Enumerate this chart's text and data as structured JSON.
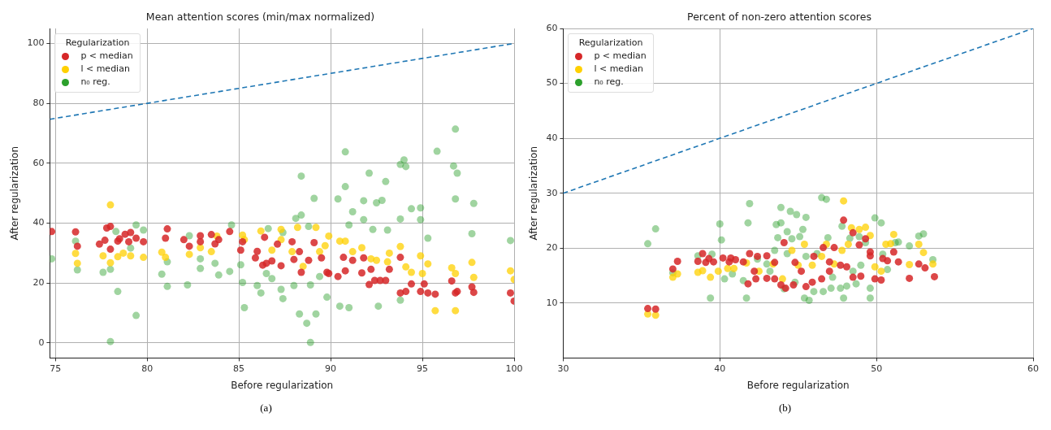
{
  "chart_data": [
    {
      "type": "scatter",
      "title": "Mean attention scores (min/max normalized)",
      "xlabel": "Before regularization",
      "ylabel": "After regularization",
      "legend_title": "Regularization",
      "legend": "top left",
      "grid": true,
      "marker": "circle",
      "xlim": [
        74.7,
        100
      ],
      "ylim": [
        -5,
        105
      ],
      "xticks": [
        75,
        80,
        85,
        90,
        95,
        100
      ],
      "yticks": [
        0,
        20,
        40,
        60,
        80,
        100
      ],
      "annotations": [
        "(a)"
      ],
      "series": [
        {
          "type": "line",
          "color": "#1f77b4",
          "line_style": "dashed",
          "marker": "none",
          "x": [
            74.7,
            100
          ],
          "values": [
            74.7,
            100
          ]
        },
        {
          "name": "p < median",
          "color": "#d62728",
          "x": [
            74.8,
            76.1,
            76.2,
            77.4,
            77.7,
            77.8,
            78,
            78,
            78.4,
            78.5,
            78.8,
            79.1,
            79,
            79.4,
            79.8,
            81.1,
            81,
            82,
            82.3,
            82.9,
            82.9,
            83.5,
            83.7,
            83.9,
            84.5,
            85.1,
            85.2,
            85.9,
            86,
            86.4,
            86.3,
            86.5,
            86.8,
            87.1,
            87.3,
            87.9,
            88,
            88.4,
            88.3,
            88.8,
            89.1,
            89.5,
            89.8,
            89.9,
            90.4,
            90.7,
            90.8,
            91.2,
            91.8,
            91.7,
            92.1,
            92.2,
            92.4,
            92.7,
            93,
            93.2,
            93.8,
            93.8,
            94.1,
            94.4,
            94.9,
            95.1,
            95.3,
            95.7,
            96.6,
            96.8,
            96.9,
            97.7,
            97.8,
            99.8,
            100
          ],
          "values": [
            37.2,
            37.1,
            32.3,
            33,
            34.3,
            38.4,
            38.9,
            31.3,
            34,
            34.8,
            36.3,
            36.9,
            33.8,
            35,
            33.8,
            38.1,
            35,
            34.5,
            32.3,
            35.8,
            33.8,
            36.2,
            33.1,
            34.5,
            37.2,
            31,
            33.8,
            28.4,
            30.6,
            35.3,
            26,
            26.6,
            27.4,
            33,
            25.8,
            33.8,
            27.9,
            23.6,
            30.5,
            27.6,
            33.5,
            28.4,
            23.6,
            23.2,
            22.2,
            28.6,
            24.1,
            27.6,
            28.4,
            23.4,
            19.5,
            24.6,
            20.9,
            20.9,
            20.9,
            24.6,
            28.6,
            16.7,
            17.2,
            19.7,
            17.2,
            19.7,
            16.7,
            16.3,
            20.7,
            16.7,
            17.2,
            18.7,
            16.9,
            16.7,
            14
          ]
        },
        {
          "name": "l < median",
          "color": "#ffd000",
          "x": [
            78,
            76.1,
            76.2,
            77.6,
            78,
            78.4,
            78.7,
            79.1,
            79.8,
            81,
            80.8,
            82.3,
            82.9,
            83.5,
            83.8,
            85.2,
            85.3,
            86.2,
            86.8,
            87.3,
            87.3,
            87.9,
            88.2,
            88.5,
            89.2,
            89.4,
            89.9,
            89.7,
            90.5,
            90.8,
            91.2,
            91.7,
            92.2,
            92.5,
            93.1,
            93.2,
            93.8,
            94.1,
            94.4,
            94.9,
            95,
            95.3,
            95.7,
            96.6,
            96.8,
            96.8,
            97.7,
            97.8,
            99.8,
            100
          ],
          "values": [
            46.1,
            29.9,
            26.6,
            29.1,
            26.8,
            28.8,
            30,
            29.1,
            28.6,
            28.6,
            30.3,
            29.6,
            31.8,
            30.5,
            35.7,
            36,
            34.5,
            37.4,
            31,
            37.9,
            34.5,
            30.5,
            38.6,
            25.6,
            38.6,
            30.5,
            35.7,
            32.5,
            34,
            34,
            30.5,
            31.8,
            28.1,
            27.6,
            27.1,
            30,
            32.2,
            25.4,
            23.6,
            29.1,
            23.2,
            26.4,
            10.8,
            25.1,
            23.2,
            10.8,
            26.9,
            21.9,
            24.1,
            21.2
          ]
        },
        {
          "name": "n₀ reg.",
          "color": "#2ca02c",
          "x": [
            74.8,
            76.1,
            76.2,
            77.6,
            78,
            78,
            78.3,
            78.4,
            79.4,
            79.4,
            79.1,
            79.8,
            80.8,
            81.1,
            81.1,
            82.2,
            82.3,
            82.9,
            82.9,
            83.7,
            83.9,
            84.5,
            84.6,
            85.1,
            85.2,
            85.3,
            86,
            86.2,
            86.5,
            86.6,
            86.8,
            87.3,
            87.4,
            87.4,
            88,
            88.1,
            88.3,
            88.4,
            88.4,
            88.7,
            88.8,
            88.9,
            88.9,
            89.1,
            89.2,
            89.4,
            89.8,
            90.4,
            90.5,
            90.8,
            90.8,
            91,
            91,
            91.2,
            91.8,
            91.8,
            92.1,
            92.3,
            92.5,
            92.6,
            92.8,
            93,
            93.1,
            93.8,
            93.8,
            94,
            94.1,
            93.8,
            94.4,
            94.9,
            94.9,
            95.3,
            95.8,
            96.7,
            96.8,
            96.9,
            96.8,
            97.8,
            97.7,
            99.8
          ],
          "values": [
            28.1,
            34,
            24.4,
            23.6,
            0.5,
            24.6,
            37.2,
            17.2,
            39.4,
            9.2,
            31.7,
            37.7,
            23,
            18.9,
            27.1,
            19.4,
            35.8,
            24.9,
            28.1,
            26.6,
            22.7,
            23.9,
            39.4,
            26.1,
            20.2,
            11.8,
            19.2,
            16.7,
            23.2,
            38.2,
            21.5,
            17.9,
            14.8,
            36.9,
            19.2,
            41.6,
            9.7,
            42.7,
            55.7,
            6.6,
            38.9,
            19.4,
            0.2,
            48.3,
            9.7,
            22.2,
            15.3,
            48.1,
            12.3,
            52.2,
            63.8,
            39.4,
            11.8,
            43.8,
            47.5,
            41.2,
            56.7,
            37.9,
            46.8,
            12.3,
            47.6,
            53.9,
            37.7,
            59.6,
            41.4,
            61.1,
            58.9,
            14.3,
            44.8,
            45.1,
            41.2,
            35,
            64,
            59.1,
            71.4,
            56.7,
            48.1,
            46.6,
            36.5,
            34.2
          ]
        }
      ]
    },
    {
      "type": "scatter",
      "title": "Percent of non-zero attention scores",
      "xlabel": "Before regularization",
      "ylabel": "After regularization",
      "legend_title": "Regularization",
      "legend": "top left",
      "grid": true,
      "marker": "circle",
      "xlim": [
        30,
        60
      ],
      "ylim": [
        0,
        60
      ],
      "xticks": [
        30,
        40,
        50,
        60
      ],
      "yticks": [
        10,
        20,
        30,
        40,
        50,
        60
      ],
      "annotations": [
        "(b)"
      ],
      "series": [
        {
          "type": "line",
          "color": "#1f77b4",
          "line_style": "dashed",
          "marker": "none",
          "x": [
            30,
            60
          ],
          "values": [
            30,
            60
          ]
        },
        {
          "name": "p < median",
          "color": "#d62728",
          "x": [
            35.4,
            35.9,
            37,
            37.3,
            38.6,
            38.9,
            39.1,
            39.3,
            39.6,
            40.2,
            40.6,
            40.7,
            41,
            41.5,
            41.8,
            41.9,
            42.2,
            42.4,
            42.3,
            43,
            43,
            43.5,
            43.5,
            43.9,
            44.2,
            44.1,
            44.7,
            44.8,
            45.2,
            45.5,
            45.9,
            46,
            46.5,
            46.6,
            47,
            47,
            47.3,
            47.7,
            47.9,
            48.1,
            48.5,
            48.5,
            48.9,
            49,
            49.3,
            49.6,
            49.6,
            49.9,
            50.3,
            50.4,
            50.7,
            51.1,
            51.4,
            52.1,
            52.7,
            53.1,
            53.7
          ],
          "values": [
            9,
            8.9,
            16.2,
            17.6,
            17.6,
            19,
            17.4,
            18.1,
            17.5,
            18.2,
            17.5,
            18.2,
            17.9,
            17.5,
            13.5,
            19,
            15.8,
            18.5,
            14.4,
            18.6,
            14.5,
            14.4,
            17.4,
            13.3,
            12.7,
            21,
            13.3,
            17.4,
            15.8,
            13,
            13.8,
            18.5,
            14.4,
            20.1,
            15.8,
            17.5,
            20.1,
            16.9,
            25.1,
            16.6,
            22.8,
            14.7,
            20.6,
            14.9,
            21.7,
            19.3,
            18.6,
            14.4,
            14.2,
            18.1,
            17.7,
            19.3,
            17.5,
            14.5,
            17.1,
            16.4,
            14.8
          ]
        },
        {
          "name": "l < median",
          "color": "#ffd000",
          "x": [
            35.4,
            35.9,
            37,
            37.3,
            38.6,
            38.9,
            39.4,
            39.9,
            40.5,
            40.9,
            41.7,
            42.5,
            43.4,
            44,
            44.6,
            45,
            45.4,
            45.9,
            46.5,
            46.8,
            47.3,
            47.8,
            47.9,
            48.2,
            48.4,
            48.9,
            49.3,
            49.6,
            49.9,
            50.3,
            50.6,
            50.9,
            51.1,
            52.1,
            52.7,
            53,
            53.6
          ],
          "values": [
            8,
            7.8,
            14.7,
            15.3,
            15.6,
            15.9,
            14.7,
            15.8,
            16.3,
            16.3,
            17.3,
            15.8,
            17.1,
            14.4,
            19.6,
            16.9,
            20.7,
            16.9,
            18.5,
            20.7,
            17.1,
            19.6,
            28.6,
            20.7,
            23.7,
            23.4,
            23.8,
            22.3,
            16.6,
            15.8,
            20.7,
            20.8,
            22.5,
            17,
            20.7,
            19.2,
            17.1
          ]
        },
        {
          "name": "n₀ reg.",
          "color": "#2ca02c",
          "x": [
            35.4,
            35.9,
            37,
            38.6,
            39.4,
            39.5,
            40,
            40.1,
            40.3,
            40.8,
            41.5,
            41.7,
            41.8,
            41.9,
            42.4,
            43,
            43.2,
            43.5,
            43.6,
            43.7,
            43.9,
            43.9,
            44.1,
            44.3,
            44.3,
            44.5,
            44.6,
            44.8,
            44.9,
            45.1,
            45.3,
            45.4,
            45.5,
            45.5,
            45.7,
            46,
            46.2,
            46.5,
            46.6,
            46.8,
            46.9,
            47.1,
            47.2,
            47.7,
            47.8,
            47.9,
            48.1,
            48.3,
            48.5,
            48.7,
            48.9,
            49,
            49.3,
            49.6,
            49.6,
            49.9,
            50.3,
            50.4,
            50.7,
            51.2,
            51.4,
            52.1,
            52.7,
            53,
            53.6
          ],
          "values": [
            20.8,
            23.5,
            15.5,
            18.6,
            10.9,
            18.9,
            24.4,
            21.5,
            14.4,
            15.3,
            14.1,
            10.9,
            24.6,
            28.1,
            18,
            17.1,
            15.8,
            19.6,
            24.3,
            21.9,
            27.4,
            24.6,
            12.6,
            23,
            19,
            26.7,
            21.7,
            13.8,
            26.1,
            22.1,
            23.4,
            10.9,
            25.6,
            18.5,
            10.5,
            12.1,
            19,
            29.2,
            12.1,
            28.9,
            21.9,
            12.7,
            14.7,
            12.7,
            24,
            10.9,
            13.1,
            21.8,
            15.8,
            13.5,
            22.1,
            16.9,
            21,
            12.7,
            10.9,
            25.5,
            24.6,
            18.9,
            16.1,
            21,
            21.1,
            20.4,
            22.2,
            22.6,
            17.9
          ]
        }
      ]
    }
  ]
}
